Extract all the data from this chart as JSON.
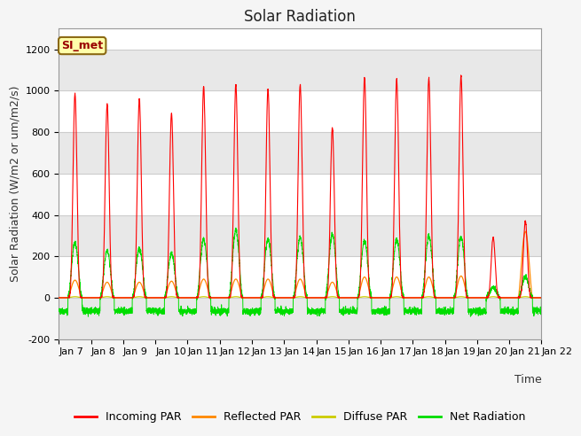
{
  "title": "Solar Radiation",
  "ylabel": "Solar Radiation (W/m2 or um/m2/s)",
  "xlabel": "Time",
  "ylim": [
    -200,
    1300
  ],
  "yticks": [
    -200,
    0,
    200,
    400,
    600,
    800,
    1000,
    1200
  ],
  "plot_bg_color": "#ffffff",
  "fig_bg_color": "#f5f5f5",
  "grid_color": "#cccccc",
  "label_annotation": "SI_met",
  "legend_labels": [
    "Incoming PAR",
    "Reflected PAR",
    "Diffuse PAR",
    "Net Radiation"
  ],
  "legend_colors": [
    "#ff0000",
    "#ff8800",
    "#cccc00",
    "#00dd00"
  ],
  "days": 15,
  "day_labels": [
    "Jan 7",
    "Jan 8",
    "Jan 9",
    "Jan 10",
    "Jan 11",
    "Jan 12",
    "Jan 13",
    "Jan 14",
    "Jan 15",
    "Jan 16",
    "Jan 17",
    "Jan 18",
    "Jan 19",
    "Jan 20",
    "Jan 21",
    "Jan 22"
  ],
  "incoming_peaks": [
    985,
    935,
    960,
    890,
    1020,
    1030,
    1010,
    1030,
    820,
    1065,
    1055,
    1062,
    1070,
    290,
    370
  ],
  "reflected_peaks": [
    85,
    75,
    75,
    80,
    90,
    90,
    90,
    90,
    75,
    100,
    100,
    100,
    105,
    50,
    320
  ],
  "diffuse_peaks": [
    5,
    5,
    5,
    5,
    5,
    5,
    5,
    5,
    5,
    5,
    5,
    5,
    5,
    5,
    5
  ],
  "net_peaks": [
    265,
    225,
    240,
    215,
    280,
    325,
    285,
    290,
    305,
    275,
    282,
    298,
    292,
    50,
    100
  ],
  "net_night": -65,
  "pts_per_day": 288,
  "title_fontsize": 12,
  "axis_fontsize": 9,
  "tick_fontsize": 8
}
